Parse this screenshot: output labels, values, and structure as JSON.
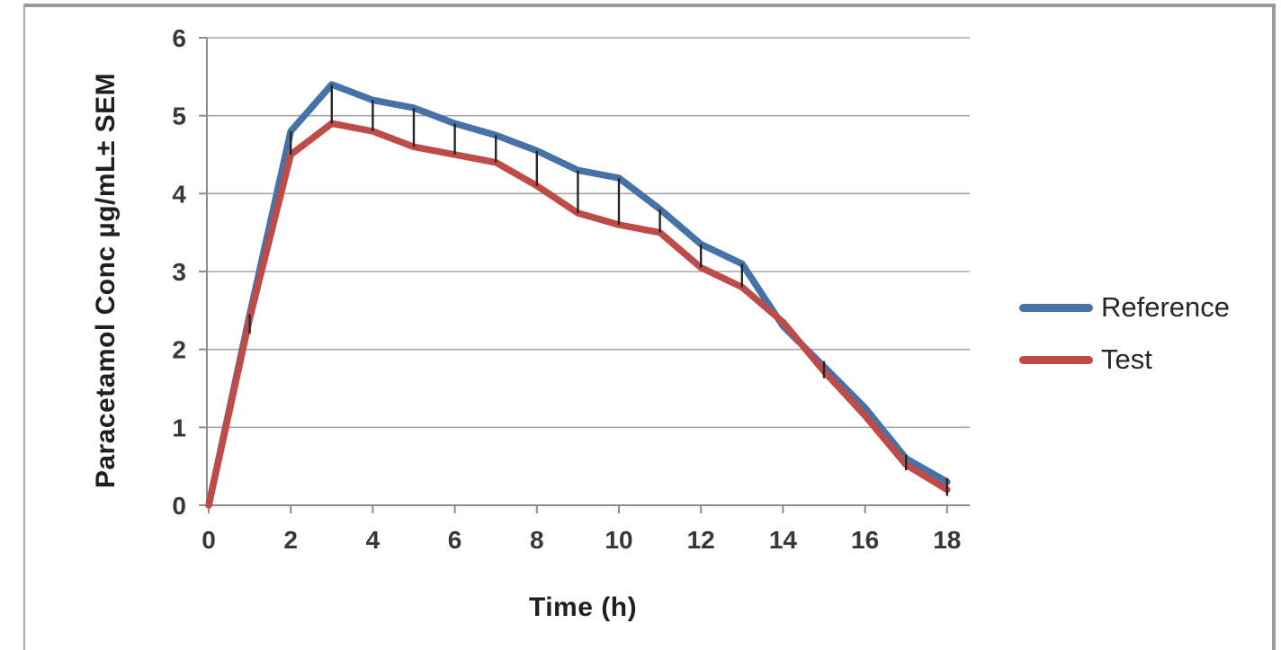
{
  "figure": {
    "background": "#ffffff",
    "border_color": "#999999"
  },
  "chart_data": {
    "type": "line",
    "title": "",
    "xlabel": "Time (h)",
    "ylabel": "Paracetamol Conc µg/mL± SEM",
    "x": [
      0,
      1,
      2,
      3,
      4,
      5,
      6,
      7,
      8,
      9,
      10,
      11,
      12,
      13,
      14,
      15,
      16,
      17,
      18
    ],
    "series": [
      {
        "name": "Reference",
        "color": "#4573A7",
        "values": [
          0,
          2.45,
          4.8,
          5.4,
          5.2,
          5.1,
          4.9,
          4.75,
          4.55,
          4.3,
          4.2,
          3.8,
          3.35,
          3.1,
          2.3,
          1.78,
          1.25,
          0.6,
          0.3
        ]
      },
      {
        "name": "Test",
        "color": "#BE4B48",
        "values": [
          0,
          2.4,
          4.5,
          4.9,
          4.8,
          4.6,
          4.5,
          4.4,
          4.1,
          3.75,
          3.6,
          3.5,
          3.05,
          2.8,
          2.35,
          1.72,
          1.15,
          0.52,
          0.2
        ]
      }
    ],
    "error_bars": [
      {
        "x": 1,
        "lo": 2.2,
        "hi": 2.45
      },
      {
        "x": 2,
        "lo": 4.5,
        "hi": 4.8
      },
      {
        "x": 3,
        "lo": 4.9,
        "hi": 5.4
      },
      {
        "x": 4,
        "lo": 4.8,
        "hi": 5.2
      },
      {
        "x": 5,
        "lo": 4.6,
        "hi": 5.1
      },
      {
        "x": 6,
        "lo": 4.5,
        "hi": 4.9
      },
      {
        "x": 7,
        "lo": 4.4,
        "hi": 4.75
      },
      {
        "x": 8,
        "lo": 4.1,
        "hi": 4.55
      },
      {
        "x": 9,
        "lo": 3.75,
        "hi": 4.3
      },
      {
        "x": 10,
        "lo": 3.6,
        "hi": 4.2
      },
      {
        "x": 11,
        "lo": 3.5,
        "hi": 3.8
      },
      {
        "x": 12,
        "lo": 3.05,
        "hi": 3.35
      },
      {
        "x": 13,
        "lo": 2.8,
        "hi": 3.1
      },
      {
        "x": 15,
        "lo": 1.63,
        "hi": 1.85
      },
      {
        "x": 17,
        "lo": 0.45,
        "hi": 0.65
      },
      {
        "x": 18,
        "lo": 0.12,
        "hi": 0.35
      }
    ],
    "xticks": [
      0,
      2,
      4,
      6,
      8,
      10,
      12,
      14,
      16,
      18
    ],
    "yticks": [
      0,
      1,
      2,
      3,
      4,
      5,
      6
    ],
    "xlim": [
      0,
      18.6
    ],
    "ylim": [
      0,
      6
    ],
    "grid": "horizontal",
    "legend_position": "right",
    "gridline_color": "#A6A6A6",
    "axis_color": "#8C8C8C",
    "errorbar_color": "#262626",
    "tick_label_color": "#383838"
  }
}
